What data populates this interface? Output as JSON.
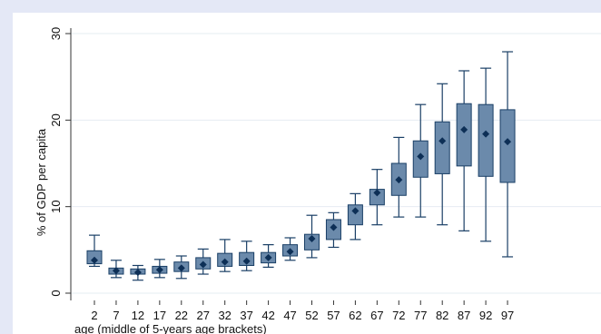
{
  "chart_data": {
    "type": "box",
    "title": "",
    "xlabel": "age (middle of 5-years age brackets)",
    "ylabel": "% of GDP per capita",
    "ylim": [
      0,
      30
    ],
    "yticks": [
      0,
      10,
      20,
      30
    ],
    "grid": true,
    "categories": [
      "2",
      "7",
      "12",
      "17",
      "22",
      "27",
      "32",
      "37",
      "42",
      "47",
      "52",
      "57",
      "62",
      "67",
      "72",
      "77",
      "82",
      "87",
      "92",
      "97"
    ],
    "boxes": [
      {
        "whisker_low": 3.1,
        "q1": 3.4,
        "median": 3.8,
        "q3": 4.9,
        "whisker_high": 6.7
      },
      {
        "whisker_low": 1.8,
        "q1": 2.2,
        "median": 2.6,
        "q3": 2.9,
        "whisker_high": 3.8
      },
      {
        "whisker_low": 1.5,
        "q1": 2.2,
        "median": 2.4,
        "q3": 2.8,
        "whisker_high": 3.2
      },
      {
        "whisker_low": 1.8,
        "q1": 2.3,
        "median": 2.7,
        "q3": 3.1,
        "whisker_high": 3.9
      },
      {
        "whisker_low": 1.7,
        "q1": 2.5,
        "median": 2.9,
        "q3": 3.6,
        "whisker_high": 4.3
      },
      {
        "whisker_low": 2.2,
        "q1": 2.8,
        "median": 3.3,
        "q3": 4.1,
        "whisker_high": 5.1
      },
      {
        "whisker_low": 2.5,
        "q1": 3.1,
        "median": 3.6,
        "q3": 4.6,
        "whisker_high": 6.2
      },
      {
        "whisker_low": 2.6,
        "q1": 3.2,
        "median": 3.7,
        "q3": 4.7,
        "whisker_high": 6.0
      },
      {
        "whisker_low": 3.0,
        "q1": 3.5,
        "median": 4.1,
        "q3": 4.7,
        "whisker_high": 5.6
      },
      {
        "whisker_low": 3.8,
        "q1": 4.3,
        "median": 4.8,
        "q3": 5.6,
        "whisker_high": 6.4
      },
      {
        "whisker_low": 4.1,
        "q1": 5.0,
        "median": 6.3,
        "q3": 6.8,
        "whisker_high": 9.0
      },
      {
        "whisker_low": 5.3,
        "q1": 6.2,
        "median": 7.6,
        "q3": 8.5,
        "whisker_high": 9.3
      },
      {
        "whisker_low": 6.2,
        "q1": 7.9,
        "median": 9.5,
        "q3": 10.2,
        "whisker_high": 11.5
      },
      {
        "whisker_low": 7.9,
        "q1": 10.2,
        "median": 11.6,
        "q3": 12.0,
        "whisker_high": 14.3
      },
      {
        "whisker_low": 8.8,
        "q1": 11.3,
        "median": 13.1,
        "q3": 15.0,
        "whisker_high": 18.0
      },
      {
        "whisker_low": 8.8,
        "q1": 13.4,
        "median": 15.8,
        "q3": 17.6,
        "whisker_high": 21.8
      },
      {
        "whisker_low": 7.9,
        "q1": 13.8,
        "median": 17.6,
        "q3": 19.8,
        "whisker_high": 24.2
      },
      {
        "whisker_low": 7.2,
        "q1": 14.7,
        "median": 18.9,
        "q3": 21.9,
        "whisker_high": 25.7
      },
      {
        "whisker_low": 6.0,
        "q1": 13.5,
        "median": 18.4,
        "q3": 21.8,
        "whisker_high": 26.0
      },
      {
        "whisker_low": 4.2,
        "q1": 12.8,
        "median": 17.5,
        "q3": 21.2,
        "whisker_high": 27.9
      }
    ],
    "colors": {
      "box_fill": "#6b8aab",
      "box_edge": "#1a3f66",
      "median_marker": "#0d2f56",
      "whisker": "#1a3f66",
      "grid": "#e6ecf2",
      "axis": "#333333",
      "background": "#ffffff"
    }
  }
}
